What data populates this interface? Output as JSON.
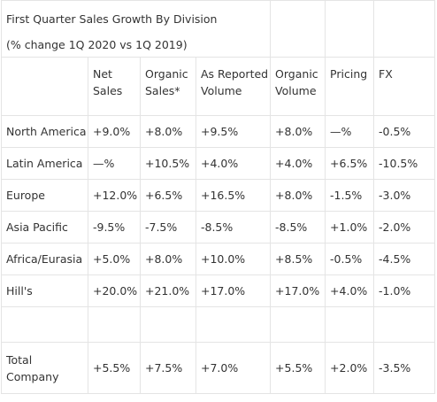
{
  "title": "First Quarter Sales Growth By Division",
  "subtitle": "(% change 1Q 2020 vs 1Q 2019)",
  "columns": [
    {
      "line1": "Net",
      "line2": "Sales"
    },
    {
      "line1": "Organic",
      "line2": "Sales*"
    },
    {
      "line1": "As Reported",
      "line2": "Volume"
    },
    {
      "line1": "Organic",
      "line2": "Volume"
    },
    {
      "line1": "Pricing",
      "line2": ""
    },
    {
      "line1": "FX",
      "line2": ""
    }
  ],
  "rows": [
    {
      "division": "North America",
      "values": [
        "+9.0%",
        "+8.0%",
        "+9.5%",
        "+8.0%",
        "—%",
        "-0.5%"
      ]
    },
    {
      "division": "Latin America",
      "values": [
        "—%",
        "+10.5%",
        "+4.0%",
        "+4.0%",
        "+6.5%",
        "-10.5%"
      ]
    },
    {
      "division": "Europe",
      "values": [
        "+12.0%",
        "+6.5%",
        "+16.5%",
        "+8.0%",
        "-1.5%",
        "-3.0%"
      ]
    },
    {
      "division": "Asia Pacific",
      "values": [
        "-9.5%",
        "-7.5%",
        "-8.5%",
        "-8.5%",
        "+1.0%",
        "-2.0%"
      ]
    },
    {
      "division": "Africa/Eurasia",
      "values": [
        "+5.0%",
        "+8.0%",
        "+10.0%",
        "+8.5%",
        "-0.5%",
        "-4.5%"
      ]
    },
    {
      "division": "Hill's",
      "values": [
        "+20.0%",
        "+21.0%",
        "+17.0%",
        "+17.0%",
        "+4.0%",
        "-1.0%"
      ]
    }
  ],
  "total": {
    "line1": "Total",
    "line2": "Company",
    "values": [
      "+5.5%",
      "+7.5%",
      "+7.0%",
      "+5.5%",
      "+2.0%",
      "-3.5%"
    ]
  }
}
